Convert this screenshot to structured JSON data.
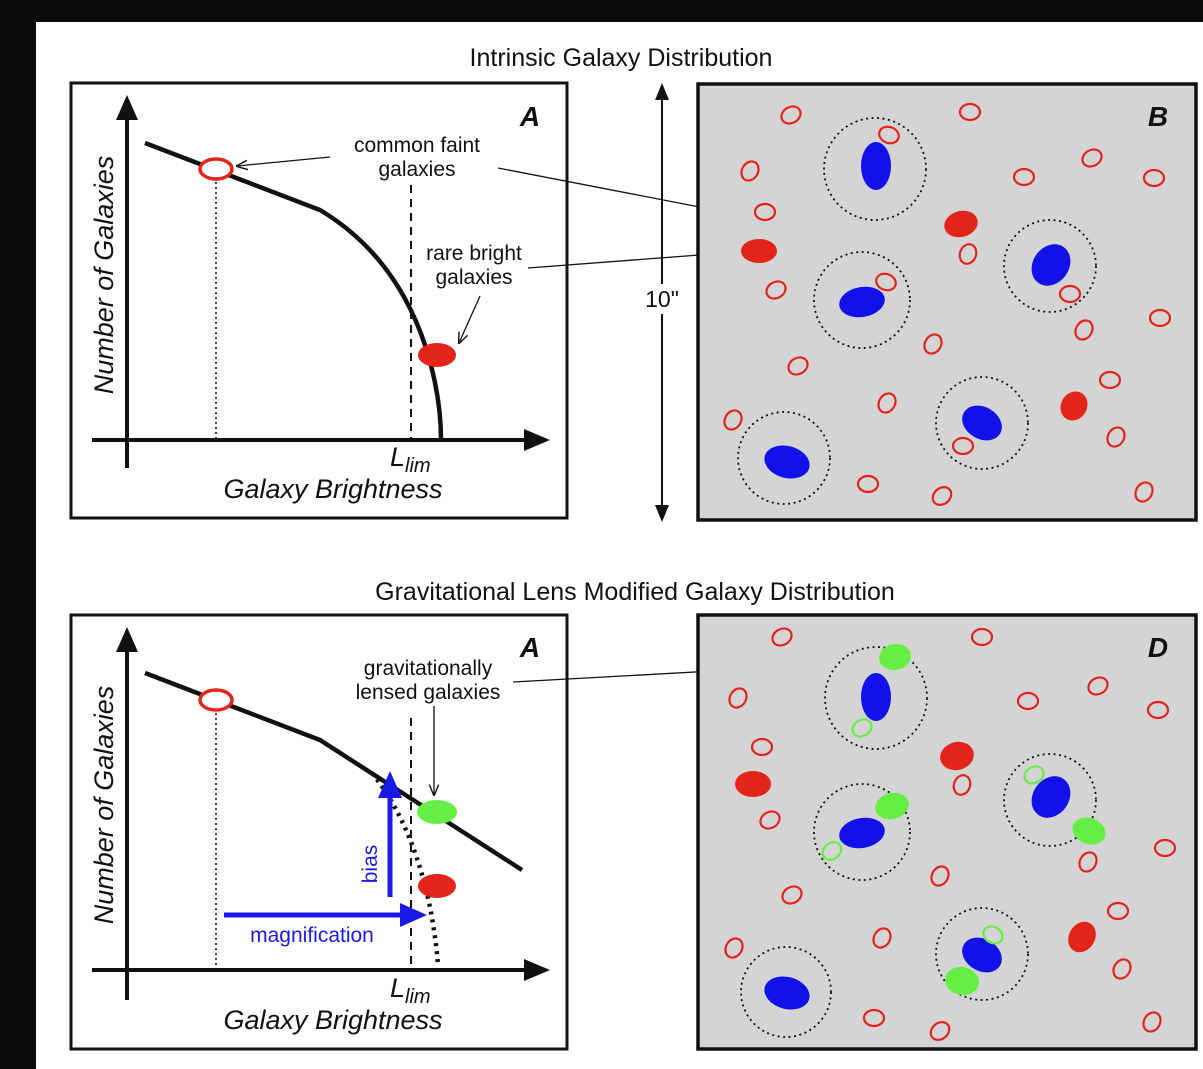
{
  "sections": {
    "top_title": "Intrinsic Galaxy Distribution",
    "bottom_title": "Gravitational Lens Modified Galaxy Distribution"
  },
  "panels": {
    "top_left": {
      "letter": "A",
      "y_axis_label": "Number of Galaxies",
      "x_axis_label": "Galaxy Brightness",
      "limit_label": "L",
      "limit_subscript": "lim"
    },
    "top_right": {
      "letter": "B"
    },
    "bottom_left": {
      "letter": "A",
      "y_axis_label": "Number of Galaxies",
      "x_axis_label": "Galaxy Brightness",
      "limit_label": "L",
      "limit_subscript": "lim"
    },
    "bottom_right": {
      "letter": "D"
    }
  },
  "annotations": {
    "common_faint": [
      "common faint",
      "galaxies"
    ],
    "rare_bright": [
      "rare bright",
      "galaxies"
    ],
    "lensed": [
      "gravitationally",
      "lensed galaxies"
    ],
    "scale": "10\"",
    "bias": "bias",
    "magnification": "magnification"
  },
  "colors": {
    "faint_galaxy": "#e3241b",
    "bright_galaxy": "#e3241b",
    "lens_galaxy": "#1212e8",
    "lensed_galaxy": "#66ee44",
    "field_background": "#d4d4d4",
    "arrow_blue": "#1a1ae6"
  }
}
